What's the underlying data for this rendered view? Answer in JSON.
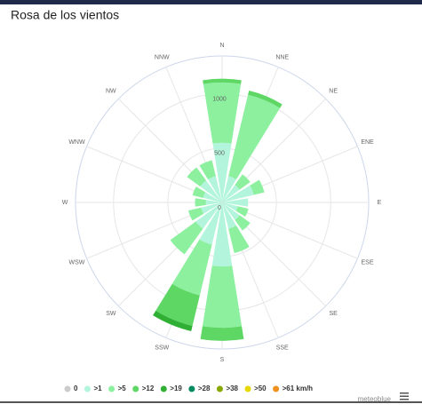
{
  "chart_data": {
    "type": "windrose",
    "title": "Rosa de los vientos",
    "credit": "meteoblue",
    "categories": [
      "N",
      "NNE",
      "NE",
      "ENE",
      "E",
      "ESE",
      "SE",
      "SSE",
      "S",
      "SSW",
      "SW",
      "WSW",
      "W",
      "WNW",
      "NW",
      "NNW"
    ],
    "ylim": [
      0,
      1350
    ],
    "yticks": [
      0,
      500,
      1000
    ],
    "grid": true,
    "series": [
      {
        "name": "0",
        "color": "#cccccc",
        "values": [
          0,
          0,
          0,
          0,
          0,
          0,
          0,
          0,
          0,
          0,
          0,
          0,
          0,
          0,
          0,
          0
        ]
      },
      {
        "name": ">1",
        "color": "#b2f5dc",
        "values": [
          550,
          250,
          200,
          300,
          240,
          150,
          200,
          250,
          590,
          400,
          300,
          200,
          150,
          180,
          250,
          250
        ]
      },
      {
        "name": ">5",
        "color": "#8cf09e",
        "values": [
          555,
          770,
          120,
          100,
          0,
          100,
          120,
          230,
          565,
          480,
          290,
          120,
          100,
          100,
          150,
          150
        ]
      },
      {
        "name": ">12",
        "color": "#5fd765",
        "values": [
          35,
          40,
          0,
          0,
          0,
          0,
          0,
          0,
          120,
          290,
          0,
          0,
          0,
          0,
          0,
          0
        ]
      },
      {
        "name": ">19",
        "color": "#2fb035",
        "values": [
          0,
          0,
          0,
          0,
          0,
          0,
          0,
          0,
          0,
          50,
          0,
          0,
          0,
          0,
          0,
          0
        ]
      },
      {
        "name": ">28",
        "color": "#008a60",
        "values": [
          0,
          0,
          0,
          0,
          0,
          0,
          0,
          0,
          0,
          0,
          0,
          0,
          0,
          0,
          0,
          0
        ]
      },
      {
        "name": ">38",
        "color": "#86a800",
        "values": [
          0,
          0,
          0,
          0,
          0,
          0,
          0,
          0,
          0,
          0,
          0,
          0,
          0,
          0,
          0,
          0
        ]
      },
      {
        "name": ">50",
        "color": "#e6d800",
        "values": [
          0,
          0,
          0,
          0,
          0,
          0,
          0,
          0,
          0,
          0,
          0,
          0,
          0,
          0,
          0,
          0
        ]
      },
      {
        "name": ">61 km/h",
        "color": "#f0901e",
        "values": [
          0,
          0,
          0,
          0,
          0,
          0,
          0,
          0,
          0,
          0,
          0,
          0,
          0,
          0,
          0,
          0
        ]
      }
    ]
  }
}
